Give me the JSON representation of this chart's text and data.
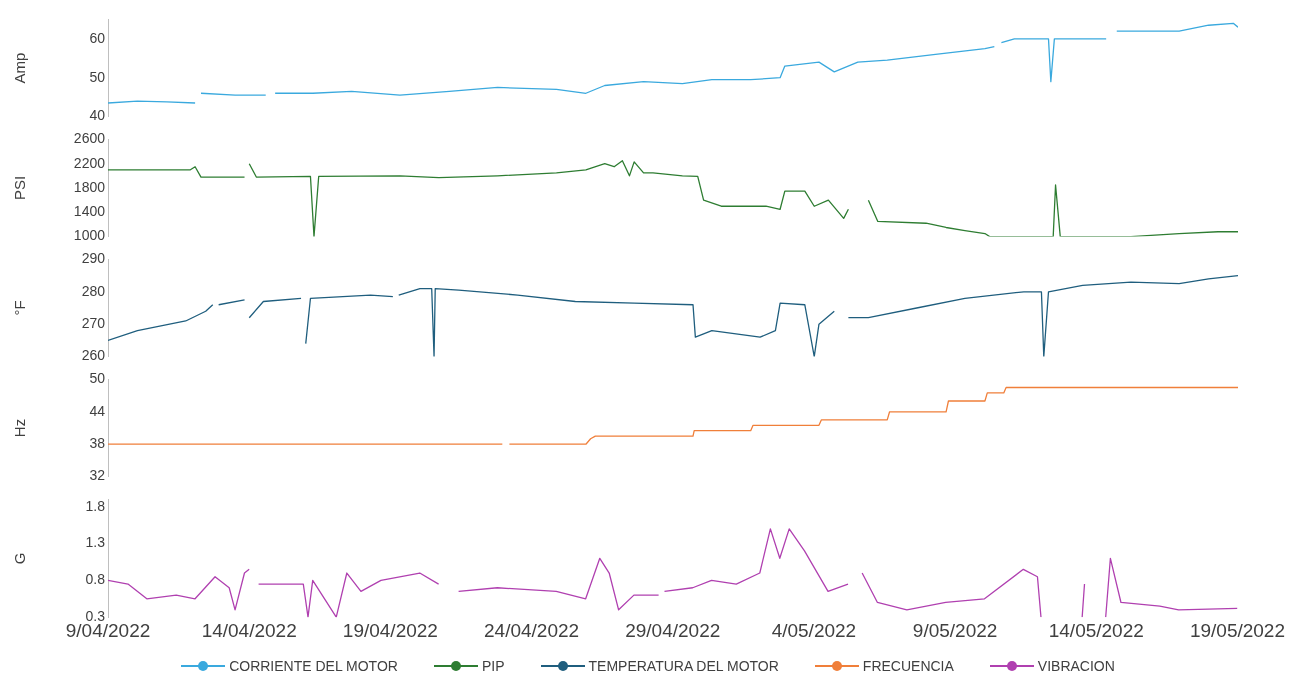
{
  "chart_data": [
    {
      "type": "line",
      "ylabel": "Amp",
      "ylim": [
        40,
        65
      ],
      "yticks": [
        40,
        50,
        60
      ],
      "xlim": [
        "2022-04-09",
        "2022-05-19"
      ],
      "tick_labels": "y",
      "legend": "bottom",
      "series": [
        {
          "name": "CORRIENTE DEL MOTOR",
          "color": "#3aa9de",
          "x": [
            "2022-04-09T00:00",
            "2022-04-10T01:00",
            "2022-04-11T02:00",
            "2022-04-12T02:00",
            "2022-04-12T05:00",
            "2022-04-12T07:00",
            "2022-04-13T12:00",
            "2022-04-14T14:00",
            "2022-04-14T17:00",
            "2022-04-14T19:00",
            "2022-04-14T21:00",
            "2022-04-14T22:00",
            "2022-04-16T06:00",
            "2022-04-17T15:00",
            "2022-04-19T08:00",
            "2022-04-21T02:00",
            "2022-04-22T19:00",
            "2022-04-24T21:00",
            "2022-04-25T22:00",
            "2022-04-26T14:00",
            "2022-04-27T23:00",
            "2022-04-29T08:00",
            "2022-04-30T09:00",
            "2022-05-01T18:00",
            "2022-05-02T19:00",
            "2022-05-02T23:00",
            "2022-05-04T04:00",
            "2022-05-04T17:00",
            "2022-05-05T13:00",
            "2022-05-06T14:00",
            "2022-05-08T07:00",
            "2022-05-10T01:00",
            "2022-05-10T09:00",
            "2022-05-10T11:00",
            "2022-05-10T15:00",
            "2022-05-11T02:00",
            "2022-05-12T07:00",
            "2022-05-12T09:00",
            "2022-05-12T12:00",
            "2022-05-14T08:00",
            "2022-05-14T14:00",
            "2022-05-14T17:00",
            "2022-05-16T22:00",
            "2022-05-17T23:00",
            "2022-05-18T20:00",
            "2022-05-19T00:00"
          ],
          "values": [
            43.5,
            44,
            43.8,
            43.5,
            null,
            46,
            45.5,
            45.5,
            null,
            46,
            null,
            46,
            46,
            46.5,
            45.5,
            46.5,
            47.5,
            47,
            46,
            48,
            49,
            48.5,
            49.5,
            49.5,
            50,
            53,
            54,
            51.5,
            54,
            54.5,
            56,
            57.5,
            58,
            null,
            59,
            60,
            60,
            49,
            60,
            60,
            null,
            62,
            62,
            63.5,
            64,
            63
          ]
        }
      ]
    },
    {
      "type": "line",
      "ylabel": "PSI",
      "ylim": [
        1000,
        2600
      ],
      "yticks": [
        1000,
        1400,
        1800,
        2200,
        2600
      ],
      "xlim": [
        "2022-04-09",
        "2022-05-19"
      ],
      "tick_labels": "y",
      "legend": "bottom",
      "series": [
        {
          "name": "PIP",
          "color": "#2e7d32",
          "x": [
            "2022-04-09T00:00",
            "2022-04-11T22:00",
            "2022-04-12T02:00",
            "2022-04-12T07:00",
            "2022-04-13T20:00",
            "2022-04-13T22:00",
            "2022-04-14T00:00",
            "2022-04-14T06:00",
            "2022-04-16T04:00",
            "2022-04-16T07:00",
            "2022-04-16T11:00",
            "2022-04-19T08:00",
            "2022-04-20T17:00",
            "2022-04-22T19:00",
            "2022-04-24T21:00",
            "2022-04-25T22:00",
            "2022-04-26T14:00",
            "2022-04-26T22:00",
            "2022-04-27T05:00",
            "2022-04-27T11:00",
            "2022-04-27T15:00",
            "2022-04-27T23:00",
            "2022-04-28T07:00",
            "2022-04-29T08:00",
            "2022-04-29T21:00",
            "2022-04-30T02:00",
            "2022-04-30T17:00",
            "2022-05-02T07:00",
            "2022-05-02T19:00",
            "2022-05-02T23:00",
            "2022-05-03T16:00",
            "2022-05-04T00:00",
            "2022-05-04T12:00",
            "2022-05-05T01:00",
            "2022-05-05T05:00",
            "2022-05-05T08:00",
            "2022-05-05T22:00",
            "2022-05-06T06:00",
            "2022-05-07T23:00",
            "2022-05-08T16:00",
            "2022-05-09T08:00",
            "2022-05-10T01:00",
            "2022-05-10T05:00",
            "2022-05-12T11:00",
            "2022-05-12T13:00",
            "2022-05-12T17:00",
            "2022-05-14T21:00",
            "2022-05-15T05:00",
            "2022-05-16T22:00",
            "2022-05-18T07:00",
            "2022-05-19T00:00"
          ],
          "values": [
            2100,
            2100,
            2150,
            1980,
            1980,
            null,
            2200,
            1980,
            1990,
            1000,
            1990,
            2000,
            1970,
            2000,
            2050,
            2100,
            2200,
            2150,
            2250,
            2000,
            2230,
            2050,
            2050,
            2000,
            1990,
            1600,
            1500,
            1500,
            1450,
            1750,
            1750,
            1500,
            1600,
            1300,
            1450,
            null,
            1600,
            1250,
            1220,
            1150,
            1100,
            1050,
            1000,
            1000,
            1850,
            1000,
            1000,
            1000,
            1050,
            1080,
            1080
          ]
        }
      ]
    },
    {
      "type": "line",
      "ylabel": "°F",
      "ylim": [
        260,
        290
      ],
      "yticks": [
        260,
        270,
        280,
        290
      ],
      "xlim": [
        "2022-04-09",
        "2022-05-19"
      ],
      "tick_labels": "y",
      "legend": "bottom",
      "series": [
        {
          "name": "TEMPERATURA DEL MOTOR",
          "color": "#1f5e7e",
          "x": [
            "2022-04-09T00:00",
            "2022-04-10T01:00",
            "2022-04-11T18:00",
            "2022-04-12T11:00",
            "2022-04-12T17:00",
            "2022-04-12T19:00",
            "2022-04-12T22:00",
            "2022-04-13T20:00",
            "2022-04-13T22:00",
            "2022-04-14T00:00",
            "2022-04-14T12:00",
            "2022-04-15T20:00",
            "2022-04-15T22:00",
            "2022-04-16T00:00",
            "2022-04-16T04:00",
            "2022-04-18T07:00",
            "2022-04-19T02:00",
            "2022-04-19T04:00",
            "2022-04-19T07:00",
            "2022-04-20T01:00",
            "2022-04-20T11:00",
            "2022-04-20T13:00",
            "2022-04-20T14:00",
            "2022-04-21T10:00",
            "2022-04-23T12:00",
            "2022-04-25T13:00",
            "2022-04-27T15:00",
            "2022-04-29T17:00",
            "2022-04-29T19:00",
            "2022-04-30T09:00",
            "2022-05-02T02:00",
            "2022-05-02T15:00",
            "2022-05-02T19:00",
            "2022-05-03T16:00",
            "2022-05-04T00:00",
            "2022-05-04T04:00",
            "2022-05-04T17:00",
            "2022-05-04T19:00",
            "2022-05-05T05:00",
            "2022-05-05T22:00",
            "2022-05-07T15:00",
            "2022-05-09T08:00",
            "2022-05-11T10:00",
            "2022-05-12T01:00",
            "2022-05-12T03:00",
            "2022-05-12T07:00",
            "2022-05-13T12:00",
            "2022-05-15T05:00",
            "2022-05-16T22:00",
            "2022-05-17T23:00",
            "2022-05-19T00:00"
          ],
          "values": [
            265,
            268,
            271,
            274,
            276,
            null,
            276,
            277.5,
            null,
            272,
            277,
            278,
            null,
            264,
            278,
            279,
            278.5,
            null,
            279,
            281,
            281,
            260,
            281,
            280.5,
            279,
            277,
            276.5,
            276,
            266,
            268,
            266,
            268,
            276.5,
            276,
            260,
            270,
            274,
            null,
            272,
            272,
            275,
            278,
            280,
            280,
            260,
            280,
            282,
            283,
            282.5,
            284,
            285
          ]
        }
      ]
    },
    {
      "type": "line",
      "ylabel": "Hz",
      "ylim": [
        32,
        50
      ],
      "yticks": [
        32,
        38,
        44,
        50
      ],
      "xlim": [
        "2022-04-09",
        "2022-05-19"
      ],
      "tick_labels": "y",
      "legend": "bottom",
      "series": [
        {
          "name": "FRECUENCIA",
          "color": "#f07f3a",
          "x": [
            "2022-04-09T00:00",
            "2022-04-22T23:00",
            "2022-04-23T01:00",
            "2022-04-23T05:00",
            "2022-04-25T22:00",
            "2022-04-26T02:00",
            "2022-04-26T06:00",
            "2022-04-29T17:00",
            "2022-04-29T18:00",
            "2022-05-01T18:00",
            "2022-05-01T20:00",
            "2022-05-04T04:00",
            "2022-05-04T06:00",
            "2022-05-06T14:00",
            "2022-05-06T16:00",
            "2022-05-08T16:00",
            "2022-05-08T18:00",
            "2022-05-10T01:00",
            "2022-05-10T03:00",
            "2022-05-10T17:00",
            "2022-05-10T19:00",
            "2022-05-19T00:00"
          ],
          "values": [
            38,
            38,
            null,
            38,
            38,
            39,
            39.5,
            39.5,
            40.5,
            40.5,
            41.5,
            41.5,
            42.5,
            42.5,
            44,
            44,
            46,
            46,
            47.5,
            47.5,
            48.5,
            48.5
          ]
        }
      ]
    },
    {
      "type": "line",
      "ylabel": "G",
      "ylim": [
        0.3,
        1.9
      ],
      "yticks": [
        0.3,
        0.8,
        1.3,
        1.8
      ],
      "xlim": [
        "2022-04-09",
        "2022-05-19"
      ],
      "xticks": [
        {
          "value": "2022-04-09",
          "label": "9/04/2022"
        },
        {
          "value": "2022-04-14",
          "label": "14/04/2022"
        },
        {
          "value": "2022-04-19",
          "label": "19/04/2022"
        },
        {
          "value": "2022-04-24",
          "label": "24/04/2022"
        },
        {
          "value": "2022-04-29",
          "label": "29/04/2022"
        },
        {
          "value": "2022-05-04",
          "label": "4/05/2022"
        },
        {
          "value": "2022-05-09",
          "label": "9/05/2022"
        },
        {
          "value": "2022-05-14",
          "label": "14/05/2022"
        },
        {
          "value": "2022-05-19",
          "label": "19/05/2022"
        }
      ],
      "legend": "bottom",
      "series": [
        {
          "name": "VIBRACION",
          "color": "#b040b0",
          "x": [
            "2022-04-09T00:00",
            "2022-04-09T17:00",
            "2022-04-10T09:00",
            "2022-04-11T10:00",
            "2022-04-12T02:00",
            "2022-04-12T19:00",
            "2022-04-13T07:00",
            "2022-04-13T12:00",
            "2022-04-13T20:00",
            "2022-04-14T00:00",
            "2022-04-14T04:00",
            "2022-04-14T08:00",
            "2022-04-15T22:00",
            "2022-04-16T02:00",
            "2022-04-16T06:00",
            "2022-04-17T02:00",
            "2022-04-17T11:00",
            "2022-04-17T23:00",
            "2022-04-18T16:00",
            "2022-04-20T01:00",
            "2022-04-20T17:00",
            "2022-04-21T02:00",
            "2022-04-21T10:00",
            "2022-04-22T19:00",
            "2022-04-24T21:00",
            "2022-04-25T22:00",
            "2022-04-26T10:00",
            "2022-04-26T18:00",
            "2022-04-27T02:00",
            "2022-04-27T15:00",
            "2022-04-28T12:00",
            "2022-04-28T14:00",
            "2022-04-28T17:00",
            "2022-04-29T17:00",
            "2022-04-30T09:00",
            "2022-05-01T06:00",
            "2022-05-02T02:00",
            "2022-05-02T11:00",
            "2022-05-02T19:00",
            "2022-05-03T03:00",
            "2022-05-03T16:00",
            "2022-05-04T12:00",
            "2022-05-05T05:00",
            "2022-05-05T09:00",
            "2022-05-05T17:00",
            "2022-05-06T06:00",
            "2022-05-07T07:00",
            "2022-05-08T16:00",
            "2022-05-10T01:00",
            "2022-05-11T10:00",
            "2022-05-11T22:00",
            "2022-05-12T01:00",
            "2022-05-12T03:00",
            "2022-05-13T12:00",
            "2022-05-13T14:00",
            "2022-05-13T17:00",
            "2022-05-14T08:00",
            "2022-05-14T12:00",
            "2022-05-14T21:00",
            "2022-05-16T06:00",
            "2022-05-16T22:00",
            "2022-05-19T00:00"
          ],
          "values": [
            0.8,
            0.75,
            0.55,
            0.6,
            0.55,
            0.85,
            0.7,
            0.4,
            0.9,
            0.95,
            null,
            0.75,
            0.75,
            0.3,
            0.8,
            0.3,
            0.9,
            0.65,
            0.8,
            0.9,
            0.75,
            null,
            0.65,
            0.7,
            0.65,
            0.55,
            1.1,
            0.9,
            0.4,
            0.6,
            0.6,
            null,
            0.65,
            0.7,
            0.8,
            0.75,
            0.9,
            1.5,
            1.1,
            1.5,
            1.2,
            0.65,
            0.75,
            null,
            0.9,
            0.5,
            0.4,
            0.5,
            0.55,
            0.95,
            0.85,
            0.3,
            null,
            0.3,
            0.75,
            null,
            0.3,
            1.1,
            0.5,
            0.45,
            0.4,
            0.42
          ]
        }
      ]
    }
  ]
}
